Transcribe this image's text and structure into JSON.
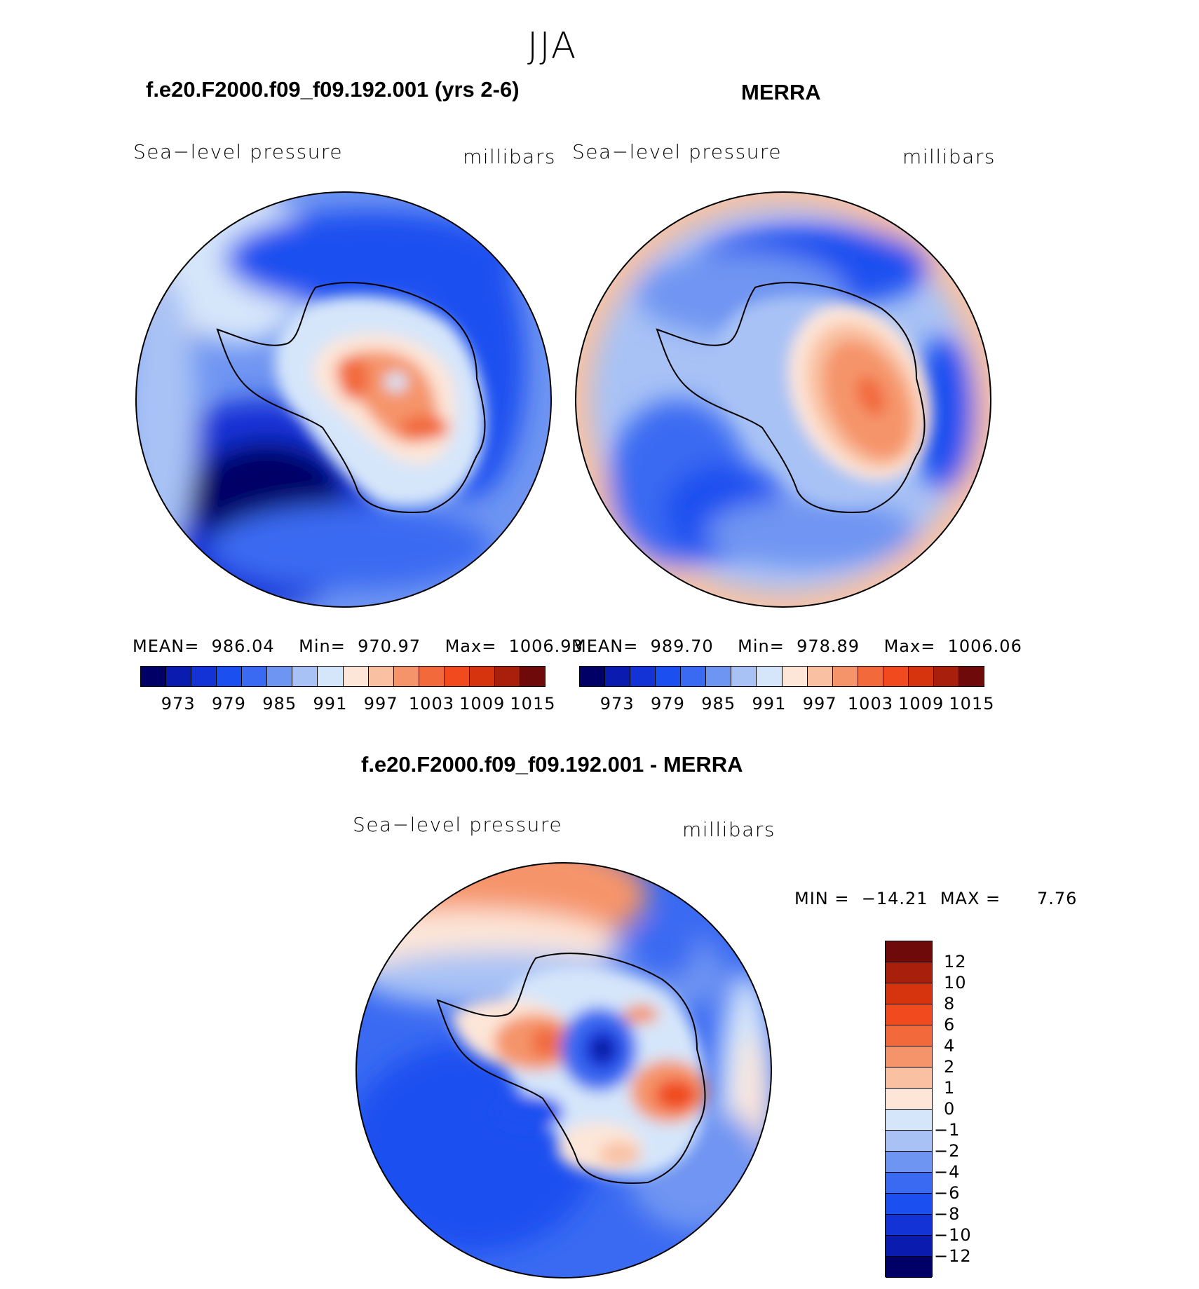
{
  "figure": {
    "season": "JJA"
  },
  "colors": {
    "abs_levels": [
      "#000066",
      "#0a1bb0",
      "#1433d6",
      "#1c4ff0",
      "#3a6af2",
      "#6f95f2",
      "#a8c2f5",
      "#d6e6fa",
      "#fde6d8",
      "#f9c1a2",
      "#f5946b",
      "#f26a3c",
      "#f04a1e",
      "#d6330f",
      "#a8200c",
      "#6e0a0a"
    ],
    "diff_levels": [
      "#000066",
      "#0a1bb0",
      "#1433d6",
      "#1c4ff0",
      "#3a6af2",
      "#6f95f2",
      "#a8c2f5",
      "#d6e6fa",
      "#fde6d8",
      "#f9c1a2",
      "#f5946b",
      "#f26a3c",
      "#f04a1e",
      "#d6330f",
      "#a8200c",
      "#6e0a0a"
    ],
    "coastline": "#000000"
  },
  "panels": [
    {
      "title": "f.e20.F2000.f09_f09.192.001 (yrs 2-6)",
      "variable": "Sea−level pressure",
      "units": "millibars",
      "mean_label": "MEAN=",
      "mean_value": "986.04",
      "min_label": "Min=",
      "min_value": "970.97",
      "max_label": "Max=",
      "max_value": "1006.93",
      "colorbar_ticks": [
        "973",
        "979",
        "985",
        "991",
        "997",
        "1003",
        "1009",
        "1015"
      ]
    },
    {
      "title": "MERRA",
      "variable": "Sea−level pressure",
      "units": "millibars",
      "mean_label": "MEAN=",
      "mean_value": "989.70",
      "min_label": "Min=",
      "min_value": "978.89",
      "max_label": "Max=",
      "max_value": "1006.06",
      "colorbar_ticks": [
        "973",
        "979",
        "985",
        "991",
        "997",
        "1003",
        "1009",
        "1015"
      ]
    }
  ],
  "difference": {
    "title": "f.e20.F2000.f09_f09.192.001 - MERRA",
    "variable": "Sea−level pressure",
    "units": "millibars",
    "min_label": "MIN =",
    "min_value": "−14.21",
    "max_label": "MAX =",
    "max_value": "7.76",
    "colorbar_ticks": [
      "12",
      "10",
      "8",
      "6",
      "4",
      "2",
      "1",
      "0",
      "−1",
      "−2",
      "−4",
      "−6",
      "−8",
      "−10",
      "−12"
    ]
  },
  "chart_data": {
    "type": "heatmap",
    "projection": "south polar stereographic",
    "region": "Antarctica / Southern Ocean",
    "maps": [
      {
        "name": "f.e20.F2000.f09_f09.192.001 (yrs 2-6)",
        "field": "Sea-level pressure",
        "units": "millibars",
        "mean": 986.04,
        "min": 970.97,
        "max": 1006.93,
        "contour_levels": [
          973,
          976,
          979,
          982,
          985,
          988,
          991,
          994,
          997,
          1000,
          1003,
          1006,
          1009,
          1012,
          1015
        ]
      },
      {
        "name": "MERRA",
        "field": "Sea-level pressure",
        "units": "millibars",
        "mean": 989.7,
        "min": 978.89,
        "max": 1006.06,
        "contour_levels": [
          973,
          976,
          979,
          982,
          985,
          988,
          991,
          994,
          997,
          1000,
          1003,
          1006,
          1009,
          1012,
          1015
        ]
      },
      {
        "name": "f.e20.F2000.f09_f09.192.001 - MERRA",
        "field": "Sea-level pressure",
        "units": "millibars",
        "min": -14.21,
        "max": 7.76,
        "contour_levels": [
          -12,
          -10,
          -8,
          -6,
          -4,
          -2,
          -1,
          0,
          1,
          2,
          4,
          6,
          8,
          10,
          12
        ]
      }
    ]
  }
}
